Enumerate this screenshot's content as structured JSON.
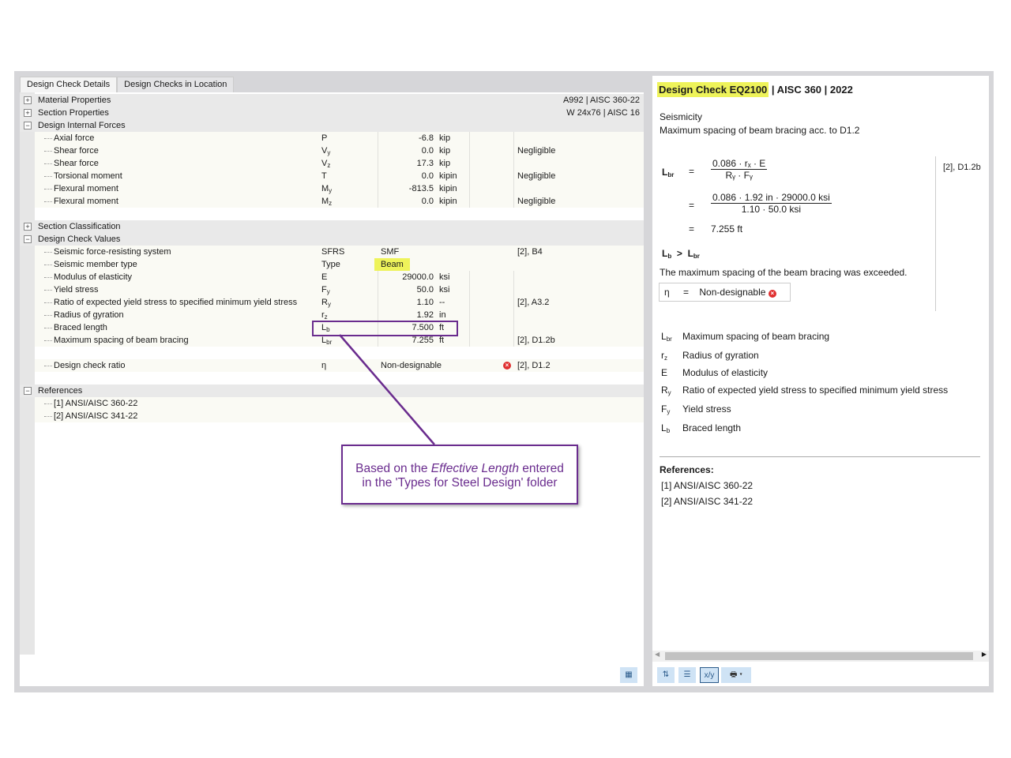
{
  "tabs": [
    "Design Check Details",
    "Design Checks in Location"
  ],
  "groups": {
    "material": {
      "label": "Material Properties",
      "info": "A992 | AISC 360-22"
    },
    "section": {
      "label": "Section Properties",
      "info": "W 24x76 | AISC 16"
    },
    "forces": {
      "label": "Design Internal Forces"
    },
    "classification": {
      "label": "Section Classification"
    },
    "check_values": {
      "label": "Design Check Values"
    },
    "references": {
      "label": "References"
    }
  },
  "forces": [
    {
      "label": "Axial force",
      "sym": "P",
      "sub": "",
      "value": "-6.8",
      "unit": "kip",
      "note": ""
    },
    {
      "label": "Shear force",
      "sym": "V",
      "sub": "y",
      "value": "0.0",
      "unit": "kip",
      "note": "Negligible"
    },
    {
      "label": "Shear force",
      "sym": "V",
      "sub": "z",
      "value": "17.3",
      "unit": "kip",
      "note": ""
    },
    {
      "label": "Torsional moment",
      "sym": "T",
      "sub": "",
      "value": "0.0",
      "unit": "kipin",
      "note": "Negligible"
    },
    {
      "label": "Flexural moment",
      "sym": "M",
      "sub": "y",
      "value": "-813.5",
      "unit": "kipin",
      "note": ""
    },
    {
      "label": "Flexural moment",
      "sym": "M",
      "sub": "z",
      "value": "0.0",
      "unit": "kipin",
      "note": "Negligible"
    }
  ],
  "check_values": [
    {
      "label": "Seismic force-resisting system",
      "sym": "SFRS",
      "sub": "",
      "text": "SMF",
      "ref": "[2], B4"
    },
    {
      "label": "Seismic member type",
      "sym": "Type",
      "sub": "",
      "text": "Beam",
      "ref": ""
    },
    {
      "label": "Modulus of elasticity",
      "sym": "E",
      "sub": "",
      "value": "29000.0",
      "unit": "ksi",
      "ref": ""
    },
    {
      "label": "Yield stress",
      "sym": "F",
      "sub": "y",
      "value": "50.0",
      "unit": "ksi",
      "ref": ""
    },
    {
      "label": "Ratio of expected yield stress to specified minimum yield stress",
      "sym": "R",
      "sub": "y",
      "value": "1.10",
      "unit": "--",
      "ref": "[2], A3.2"
    },
    {
      "label": "Radius of gyration",
      "sym": "r",
      "sub": "z",
      "value": "1.92",
      "unit": "in",
      "ref": ""
    },
    {
      "label": "Braced length",
      "sym": "L",
      "sub": "b",
      "value": "7.500",
      "unit": "ft",
      "ref": ""
    },
    {
      "label": "Maximum spacing of beam bracing",
      "sym": "L",
      "sub": "br",
      "value": "7.255",
      "unit": "ft",
      "ref": "[2], D1.2b"
    }
  ],
  "ratio": {
    "label": "Design check ratio",
    "sym": "η",
    "text": "Non-designable",
    "ref": "[2], D1.2"
  },
  "references": [
    "[1]  ANSI/AISC 360-22",
    "[2]  ANSI/AISC 341-22"
  ],
  "callout": {
    "pre": "Based on the ",
    "em": "Effective Length",
    "post": " entered",
    "line2": "in the 'Types for Steel Design' folder"
  },
  "right": {
    "title_hl": "Design Check EQ2100",
    "title_rest": " | AISC 360 | 2022",
    "category": "Seismicity",
    "desc": "Maximum spacing of beam bracing acc. to D1.2",
    "ref": "[2], D1.2b",
    "num1": "0.086  ·  rₓ  ·  E",
    "den1": "Rᵧ  ·  Fᵧ",
    "num2": "0.086  ·  1.92 in  ·  29000.0 ksi",
    "den2": "1.10  ·  50.0 ksi",
    "result": "7.255 ft",
    "eq": "=",
    "gt": ">",
    "conclusion": "The maximum spacing of the beam bracing was exceeded.",
    "eta": "η",
    "eta_value": "Non-designable",
    "legend": [
      {
        "sym": "L",
        "sub": "br",
        "text": "Maximum spacing of beam bracing"
      },
      {
        "sym": "r",
        "sub": "z",
        "text": "Radius of gyration"
      },
      {
        "sym": "E",
        "sub": "",
        "text": "Modulus of elasticity"
      },
      {
        "sym": "R",
        "sub": "y",
        "text": "Ratio of expected yield stress to specified minimum yield stress"
      },
      {
        "sym": "F",
        "sub": "y",
        "text": "Yield stress"
      },
      {
        "sym": "L",
        "sub": "b",
        "text": "Braced length"
      }
    ],
    "refs_title": "References:",
    "refs": [
      "[1]   ANSI/AISC 360-22",
      "[2]   ANSI/AISC 341-22"
    ]
  },
  "colors": {
    "highlight": "#eef35a",
    "callout": "#6a2c8e",
    "error": "#e03030"
  }
}
